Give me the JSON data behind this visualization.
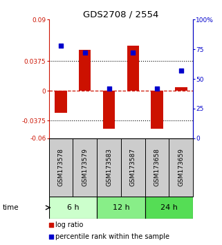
{
  "title": "GDS2708 / 2554",
  "samples": [
    "GSM173578",
    "GSM173579",
    "GSM173583",
    "GSM173587",
    "GSM173658",
    "GSM173659"
  ],
  "log_ratio": [
    -0.028,
    0.052,
    -0.048,
    0.057,
    -0.048,
    0.005
  ],
  "percentile_rank": [
    78,
    72,
    42,
    72,
    42,
    57
  ],
  "ylim_left": [
    -0.06,
    0.09
  ],
  "ylim_right": [
    0,
    100
  ],
  "yticks_left": [
    -0.06,
    -0.0375,
    0,
    0.0375,
    0.09
  ],
  "yticks_right": [
    0,
    25,
    50,
    75,
    100
  ],
  "ytick_labels_left": [
    "-0.06",
    "-0.0375",
    "0",
    "0.0375",
    "0.09"
  ],
  "ytick_labels_right": [
    "0",
    "25",
    "50",
    "75",
    "100%"
  ],
  "hlines_dotted": [
    -0.0375,
    0.0375
  ],
  "hline_dashed": 0,
  "time_groups": [
    {
      "label": "6 h",
      "color": "#ccffcc"
    },
    {
      "label": "12 h",
      "color": "#88ee88"
    },
    {
      "label": "24 h",
      "color": "#55dd55"
    }
  ],
  "bar_color": "#cc1100",
  "dot_color": "#0000cc",
  "bar_width": 0.5,
  "dot_size": 25,
  "legend_bar_label": "log ratio",
  "legend_dot_label": "percentile rank within the sample",
  "time_label": "time",
  "background_color": "#ffffff",
  "plot_bg_color": "#ffffff",
  "sample_box_color": "#cccccc",
  "right_axis_color": "#0000cc",
  "left_axis_color": "#cc1100"
}
